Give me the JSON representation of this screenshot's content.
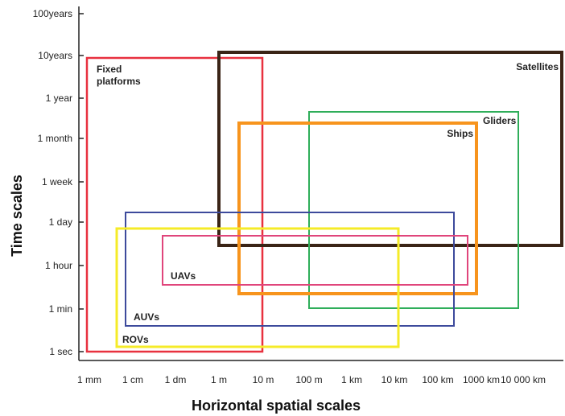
{
  "chart_data": {
    "type": "range-rectangles",
    "xlabel": "Horizontal spatial scales",
    "ylabel": "Time scales",
    "x_ticks": [
      "1 mm",
      "1 cm",
      "1 dm",
      "1 m",
      "10 m",
      "100 m",
      "1 km",
      "10 km",
      "100 km",
      "1000 km",
      "10 000 km"
    ],
    "y_ticks": [
      "1 sec",
      "1 min",
      "1 hour",
      "1 day",
      "1 week",
      "1 month",
      "1 year",
      "10years",
      "100years"
    ],
    "platforms": [
      {
        "name": "Fixed platforms",
        "label": "Fixed platforms",
        "color": "#e8313f",
        "width": 2.5,
        "x_range": [
          "1 mm",
          "10 m"
        ],
        "y_range": [
          "1 sec",
          "10years"
        ]
      },
      {
        "name": "Satellites",
        "label": "Satellites",
        "color": "#3a2416",
        "width": 4,
        "x_range": [
          "1 m",
          "10 000 km"
        ],
        "y_range": [
          "~12 hours",
          "~15 years"
        ]
      },
      {
        "name": "Gliders",
        "label": "Gliders",
        "color": "#2fae5a",
        "width": 2,
        "x_range": [
          "100 m",
          "~5000 km"
        ],
        "y_range": [
          "1 min",
          "~4 months"
        ]
      },
      {
        "name": "Ships",
        "label": "Ships",
        "color": "#f7941d",
        "width": 4,
        "x_range": [
          "~3 m",
          "~1000 km"
        ],
        "y_range": [
          "~20 min",
          "~2 months"
        ]
      },
      {
        "name": "AUVs",
        "label": "AUVs",
        "color": "#3d4a9c",
        "width": 2,
        "x_range": [
          "1 cm",
          "~300 km"
        ],
        "y_range": [
          "~5 min",
          "~1 day"
        ]
      },
      {
        "name": "ROVs",
        "label": "ROVs",
        "color": "#f5eb28",
        "width": 3,
        "x_range": [
          "~5 mm",
          "~10 km"
        ],
        "y_range": [
          "~2 sec",
          "~20 hours"
        ]
      },
      {
        "name": "UAVs",
        "label": "UAVs",
        "color": "#e0457b",
        "width": 2,
        "x_range": [
          "~5 cm",
          "~300 km"
        ],
        "y_range": [
          "~30 min",
          "~12 hours"
        ]
      }
    ]
  }
}
